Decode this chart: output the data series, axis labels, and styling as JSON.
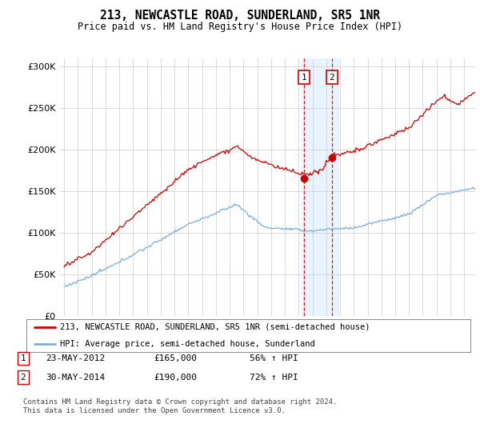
{
  "title": "213, NEWCASTLE ROAD, SUNDERLAND, SR5 1NR",
  "subtitle": "Price paid vs. HM Land Registry's House Price Index (HPI)",
  "legend_line1": "213, NEWCASTLE ROAD, SUNDERLAND, SR5 1NR (semi-detached house)",
  "legend_line2": "HPI: Average price, semi-detached house, Sunderland",
  "footnote": "Contains HM Land Registry data © Crown copyright and database right 2024.\nThis data is licensed under the Open Government Licence v3.0.",
  "sale1_label": "1",
  "sale1_date": "23-MAY-2012",
  "sale1_price": "£165,000",
  "sale1_hpi": "56% ↑ HPI",
  "sale2_label": "2",
  "sale2_date": "30-MAY-2014",
  "sale2_price": "£190,000",
  "sale2_hpi": "72% ↑ HPI",
  "red_color": "#cc0000",
  "blue_color": "#7aade0",
  "bg_color": "#ffffff",
  "grid_color": "#cccccc",
  "highlight_color": "#ddeeff",
  "sale1_year": 2012.38,
  "sale2_year": 2014.41,
  "sale1_price_val": 165000,
  "sale2_price_val": 190000,
  "ylim": [
    0,
    310000
  ],
  "yticks": [
    0,
    50000,
    100000,
    150000,
    200000,
    250000,
    300000
  ],
  "xlim_start": 1994.7,
  "xlim_end": 2024.8
}
